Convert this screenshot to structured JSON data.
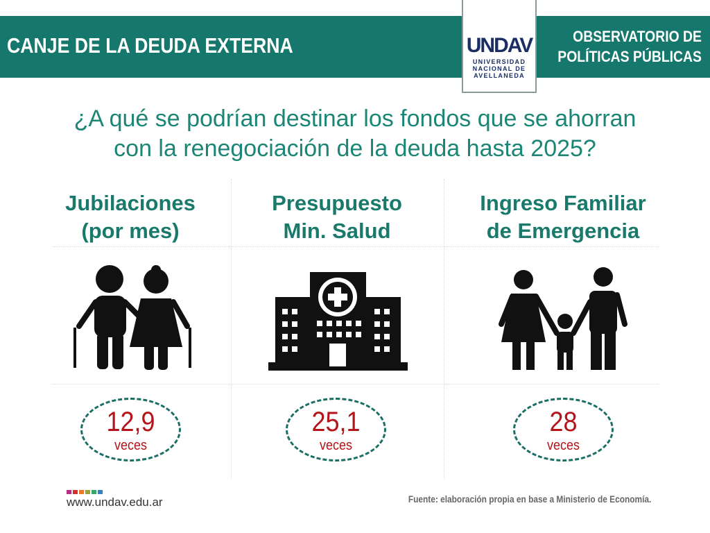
{
  "header": {
    "title": "CANJE DE LA DEUDA EXTERNA",
    "observatory_line1": "OBSERVATORIO DE",
    "observatory_line2": "POLÍTICAS PÚBLICAS",
    "logo_mark": "UNDAV",
    "logo_line1": "UNIVERSIDAD",
    "logo_line2": "NACIONAL DE",
    "logo_line3": "AVELLANEDA"
  },
  "question": {
    "line1": "¿A qué se podrían destinar los fondos que se ahorran",
    "line2": "con la renegociación de la deuda hasta 2025?"
  },
  "columns": [
    {
      "title1": "Jubilaciones",
      "title2": "(por mes)",
      "icon": "elderly-couple-icon",
      "value": "12,9",
      "unit": "veces"
    },
    {
      "title1": "Presupuesto",
      "title2": "Min. Salud",
      "icon": "hospital-icon",
      "value": "25,1",
      "unit": "veces"
    },
    {
      "title1": "Ingreso Familiar",
      "title2": "de Emergencia",
      "icon": "family-icon",
      "value": "28",
      "unit": "veces"
    }
  ],
  "footer": {
    "url": "www.undav.edu.ar",
    "source": "Fuente: elaboración propia en base a Ministerio de Economía.",
    "colors": [
      "#b5307e",
      "#d32f2f",
      "#e87a2a",
      "#9aa23a",
      "#3aa66a",
      "#2e86c1"
    ]
  },
  "colors": {
    "teal": "#16786c",
    "red": "#b3151b"
  }
}
